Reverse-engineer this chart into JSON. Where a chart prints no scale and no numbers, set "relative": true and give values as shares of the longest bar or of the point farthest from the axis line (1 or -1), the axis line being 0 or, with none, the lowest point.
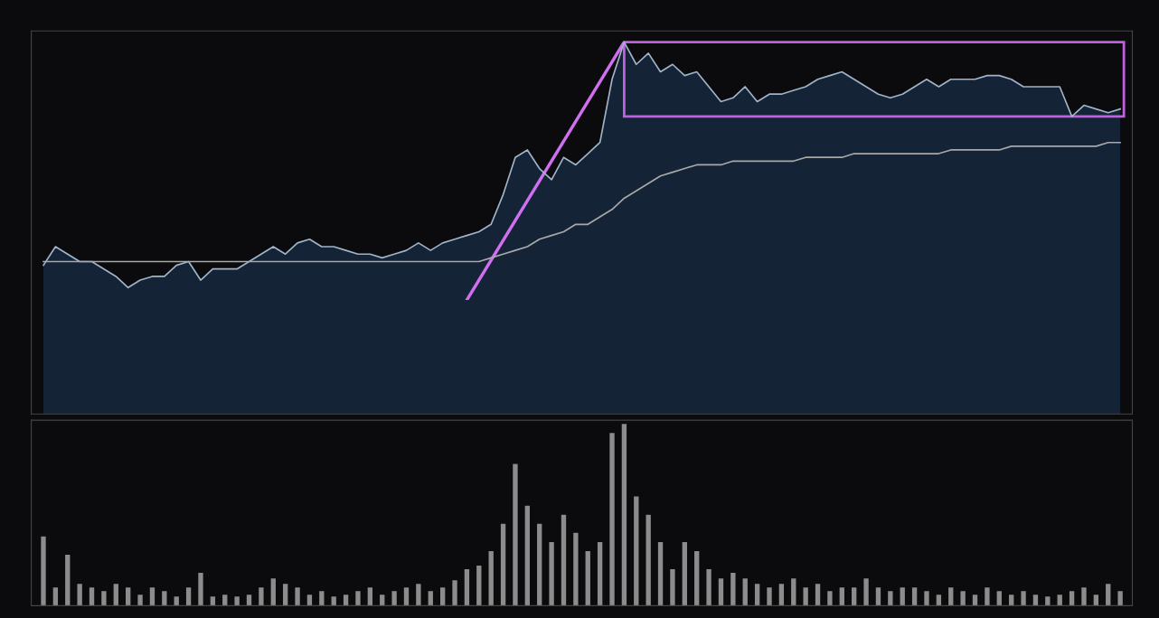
{
  "chart_data": [
    {
      "type": "area",
      "relative": true,
      "tick_labels": false,
      "categories": [
        null,
        null,
        null,
        null,
        null,
        null,
        null,
        null,
        null,
        null,
        null,
        null,
        null,
        null,
        null,
        null,
        null,
        null,
        null,
        null,
        null,
        null,
        null,
        null,
        null,
        null,
        null,
        null,
        null,
        null,
        null,
        null,
        null,
        null,
        null,
        null,
        null,
        null,
        null,
        null,
        null,
        null,
        null,
        null,
        null,
        null,
        null,
        null,
        null,
        null,
        null,
        null,
        null,
        null,
        null,
        null,
        null,
        null,
        null,
        null,
        null,
        null,
        null,
        null,
        null,
        null,
        null,
        null,
        null,
        null,
        null,
        null,
        null,
        null,
        null,
        null,
        null,
        null,
        null,
        null,
        null,
        null,
        null,
        null,
        null,
        null,
        null,
        null,
        null,
        null
      ],
      "series": [
        {
          "type": "area",
          "color": "#9fb4c8",
          "values": [
            0.4,
            0.45,
            0.43,
            0.41,
            0.41,
            0.39,
            0.37,
            0.34,
            0.36,
            0.37,
            0.37,
            0.4,
            0.41,
            0.36,
            0.39,
            0.39,
            0.39,
            0.41,
            0.43,
            0.45,
            0.43,
            0.46,
            0.47,
            0.45,
            0.45,
            0.44,
            0.43,
            0.43,
            0.42,
            0.43,
            0.44,
            0.46,
            0.44,
            0.46,
            0.47,
            0.48,
            0.49,
            0.51,
            0.59,
            0.69,
            0.71,
            0.66,
            0.63,
            0.69,
            0.67,
            0.7,
            0.73,
            0.9,
            1.0,
            0.94,
            0.97,
            0.92,
            0.94,
            0.91,
            0.92,
            0.88,
            0.84,
            0.85,
            0.88,
            0.84,
            0.86,
            0.86,
            0.87,
            0.88,
            0.9,
            0.91,
            0.92,
            0.9,
            0.88,
            0.86,
            0.85,
            0.86,
            0.88,
            0.9,
            0.88,
            0.9,
            0.9,
            0.9,
            0.91,
            0.91,
            0.9,
            0.88,
            0.88,
            0.88,
            0.88,
            0.8,
            0.83,
            0.82,
            0.81,
            0.82
          ]
        },
        {
          "type": "line",
          "color": "#a8a8a8",
          "values": [
            0.41,
            0.41,
            0.41,
            0.41,
            0.41,
            0.41,
            0.41,
            0.41,
            0.41,
            0.41,
            0.41,
            0.41,
            0.41,
            0.41,
            0.41,
            0.41,
            0.41,
            0.41,
            0.41,
            0.41,
            0.41,
            0.41,
            0.41,
            0.41,
            0.41,
            0.41,
            0.41,
            0.41,
            0.41,
            0.41,
            0.41,
            0.41,
            0.41,
            0.41,
            0.41,
            0.41,
            0.41,
            0.42,
            0.43,
            0.44,
            0.45,
            0.47,
            0.48,
            0.49,
            0.51,
            0.51,
            0.53,
            0.55,
            0.58,
            0.6,
            0.62,
            0.64,
            0.65,
            0.66,
            0.67,
            0.67,
            0.67,
            0.68,
            0.68,
            0.68,
            0.68,
            0.68,
            0.68,
            0.69,
            0.69,
            0.69,
            0.69,
            0.7,
            0.7,
            0.7,
            0.7,
            0.7,
            0.7,
            0.7,
            0.7,
            0.71,
            0.71,
            0.71,
            0.71,
            0.71,
            0.72,
            0.72,
            0.72,
            0.72,
            0.72,
            0.72,
            0.72,
            0.72,
            0.73,
            0.73
          ]
        }
      ]
    },
    {
      "type": "bar",
      "relative": true,
      "tick_labels": false,
      "color": "#8c8c8c",
      "categories": [
        null,
        null,
        null,
        null,
        null,
        null,
        null,
        null,
        null,
        null,
        null,
        null,
        null,
        null,
        null,
        null,
        null,
        null,
        null,
        null,
        null,
        null,
        null,
        null,
        null,
        null,
        null,
        null,
        null,
        null,
        null,
        null,
        null,
        null,
        null,
        null,
        null,
        null,
        null,
        null,
        null,
        null,
        null,
        null,
        null,
        null,
        null,
        null,
        null,
        null,
        null,
        null,
        null,
        null,
        null,
        null,
        null,
        null,
        null,
        null,
        null,
        null,
        null,
        null,
        null,
        null,
        null,
        null,
        null,
        null,
        null,
        null,
        null,
        null,
        null,
        null,
        null,
        null,
        null,
        null,
        null,
        null,
        null,
        null,
        null,
        null,
        null,
        null,
        null,
        null
      ],
      "values": [
        0.38,
        0.1,
        0.28,
        0.12,
        0.1,
        0.08,
        0.12,
        0.1,
        0.06,
        0.1,
        0.08,
        0.05,
        0.1,
        0.18,
        0.05,
        0.06,
        0.05,
        0.06,
        0.1,
        0.15,
        0.12,
        0.1,
        0.06,
        0.08,
        0.05,
        0.06,
        0.08,
        0.1,
        0.06,
        0.08,
        0.1,
        0.12,
        0.08,
        0.1,
        0.14,
        0.2,
        0.22,
        0.3,
        0.45,
        0.78,
        0.55,
        0.45,
        0.35,
        0.5,
        0.4,
        0.3,
        0.35,
        0.95,
        1.0,
        0.6,
        0.5,
        0.35,
        0.2,
        0.35,
        0.3,
        0.2,
        0.15,
        0.18,
        0.15,
        0.12,
        0.1,
        0.12,
        0.15,
        0.1,
        0.12,
        0.08,
        0.1,
        0.1,
        0.15,
        0.1,
        0.08,
        0.1,
        0.1,
        0.08,
        0.06,
        0.1,
        0.08,
        0.06,
        0.1,
        0.08,
        0.06,
        0.08,
        0.06,
        0.05,
        0.06,
        0.08,
        0.1,
        0.06,
        0.12,
        0.08
      ]
    }
  ]
}
